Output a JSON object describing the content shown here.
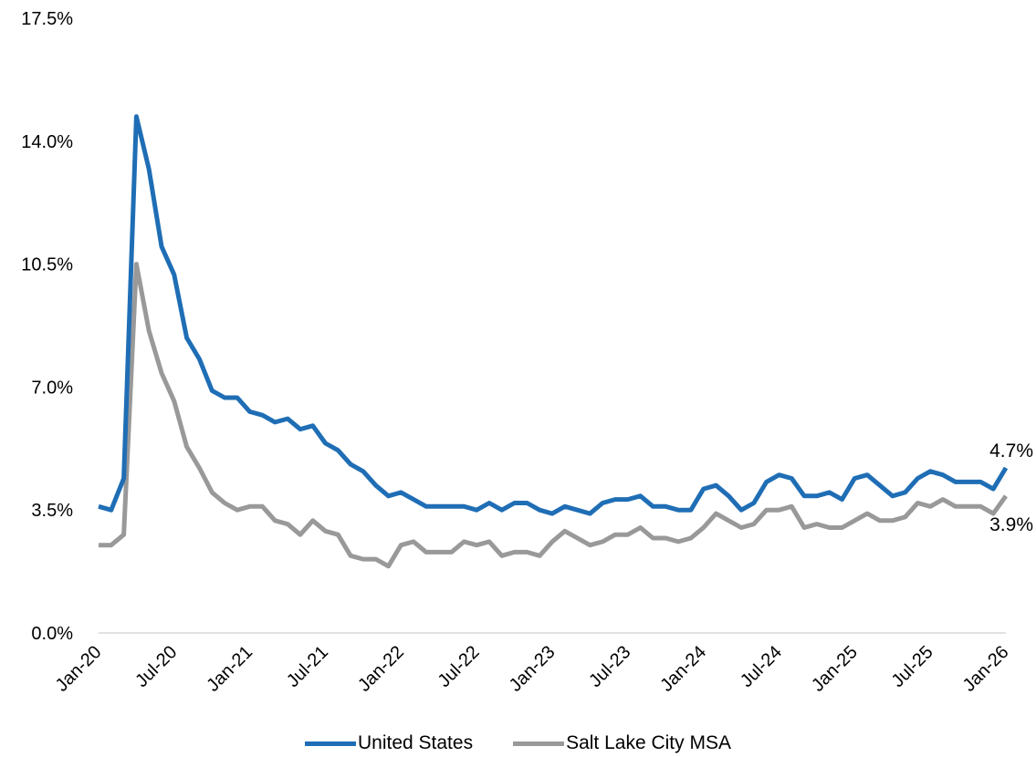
{
  "chart_data": {
    "type": "line",
    "title": "",
    "xlabel": "",
    "ylabel": "",
    "ylim": [
      0,
      17.5
    ],
    "y_ticks": [
      "0.0%",
      "3.5%",
      "7.0%",
      "10.5%",
      "14.0%",
      "17.5%"
    ],
    "y_tick_values": [
      0,
      3.5,
      7,
      10.5,
      14,
      17.5
    ],
    "x_tick_labels": [
      "Jan-20",
      "Jul-20",
      "Jan-21",
      "Jul-21",
      "Jan-22",
      "Jul-22",
      "Jan-23",
      "Jul-23",
      "Jan-24",
      "Jul-24",
      "Jan-25",
      "Jul-25",
      "Jan-26"
    ],
    "x": [
      "Jan-20",
      "Feb-20",
      "Mar-20",
      "Apr-20",
      "May-20",
      "Jun-20",
      "Jul-20",
      "Aug-20",
      "Sep-20",
      "Oct-20",
      "Nov-20",
      "Dec-20",
      "Jan-21",
      "Feb-21",
      "Mar-21",
      "Apr-21",
      "May-21",
      "Jun-21",
      "Jul-21",
      "Aug-21",
      "Sep-21",
      "Oct-21",
      "Nov-21",
      "Dec-21",
      "Jan-22",
      "Feb-22",
      "Mar-22",
      "Apr-22",
      "May-22",
      "Jun-22",
      "Jul-22",
      "Aug-22",
      "Sep-22",
      "Oct-22",
      "Nov-22",
      "Dec-22",
      "Jan-23",
      "Feb-23",
      "Mar-23",
      "Apr-23",
      "May-23",
      "Jun-23",
      "Jul-23",
      "Aug-23",
      "Sep-23",
      "Oct-23",
      "Nov-23",
      "Dec-23",
      "Jan-24",
      "Feb-24",
      "Mar-24",
      "Apr-24",
      "May-24",
      "Jun-24",
      "Jul-24",
      "Aug-24",
      "Sep-24",
      "Oct-24",
      "Nov-24",
      "Dec-24",
      "Jan-25",
      "Feb-25",
      "Mar-25",
      "Apr-25",
      "May-25",
      "Jun-25",
      "Jul-25",
      "Aug-25",
      "Sep-25",
      "Oct-25",
      "Nov-25",
      "Dec-25",
      "Jan-26"
    ],
    "series": [
      {
        "name": "United States",
        "color": "#1f6eb5",
        "values": [
          3.6,
          3.5,
          4.4,
          14.7,
          13.2,
          11.0,
          10.2,
          8.4,
          7.8,
          6.9,
          6.7,
          6.7,
          6.3,
          6.2,
          6.0,
          6.1,
          5.8,
          5.9,
          5.4,
          5.2,
          4.8,
          4.6,
          4.2,
          3.9,
          4.0,
          3.8,
          3.6,
          3.6,
          3.6,
          3.6,
          3.5,
          3.7,
          3.5,
          3.7,
          3.7,
          3.5,
          3.4,
          3.6,
          3.5,
          3.4,
          3.7,
          3.8,
          3.8,
          3.9,
          3.6,
          3.6,
          3.5,
          3.5,
          4.1,
          4.2,
          3.9,
          3.5,
          3.7,
          4.3,
          4.5,
          4.4,
          3.9,
          3.9,
          4.0,
          3.8,
          4.4,
          4.5,
          4.2,
          3.9,
          4.0,
          4.4,
          4.6,
          4.5,
          4.3,
          4.3,
          4.3,
          4.1,
          4.7
        ]
      },
      {
        "name": "Salt Lake City MSA",
        "color": "#999999",
        "values": [
          2.5,
          2.5,
          2.8,
          10.5,
          8.6,
          7.4,
          6.6,
          5.3,
          4.7,
          4.0,
          3.7,
          3.5,
          3.6,
          3.6,
          3.2,
          3.1,
          2.8,
          3.2,
          2.9,
          2.8,
          2.2,
          2.1,
          2.1,
          1.9,
          2.5,
          2.6,
          2.3,
          2.3,
          2.3,
          2.6,
          2.5,
          2.6,
          2.2,
          2.3,
          2.3,
          2.2,
          2.6,
          2.9,
          2.7,
          2.5,
          2.6,
          2.8,
          2.8,
          3.0,
          2.7,
          2.7,
          2.6,
          2.7,
          3.0,
          3.4,
          3.2,
          3.0,
          3.1,
          3.5,
          3.5,
          3.6,
          3.0,
          3.1,
          3.0,
          3.0,
          3.2,
          3.4,
          3.2,
          3.2,
          3.3,
          3.7,
          3.6,
          3.8,
          3.6,
          3.6,
          3.6,
          3.4,
          3.9
        ]
      }
    ],
    "end_labels": [
      "4.7%",
      "3.9%"
    ],
    "grid": false,
    "legend_position": "bottom"
  }
}
